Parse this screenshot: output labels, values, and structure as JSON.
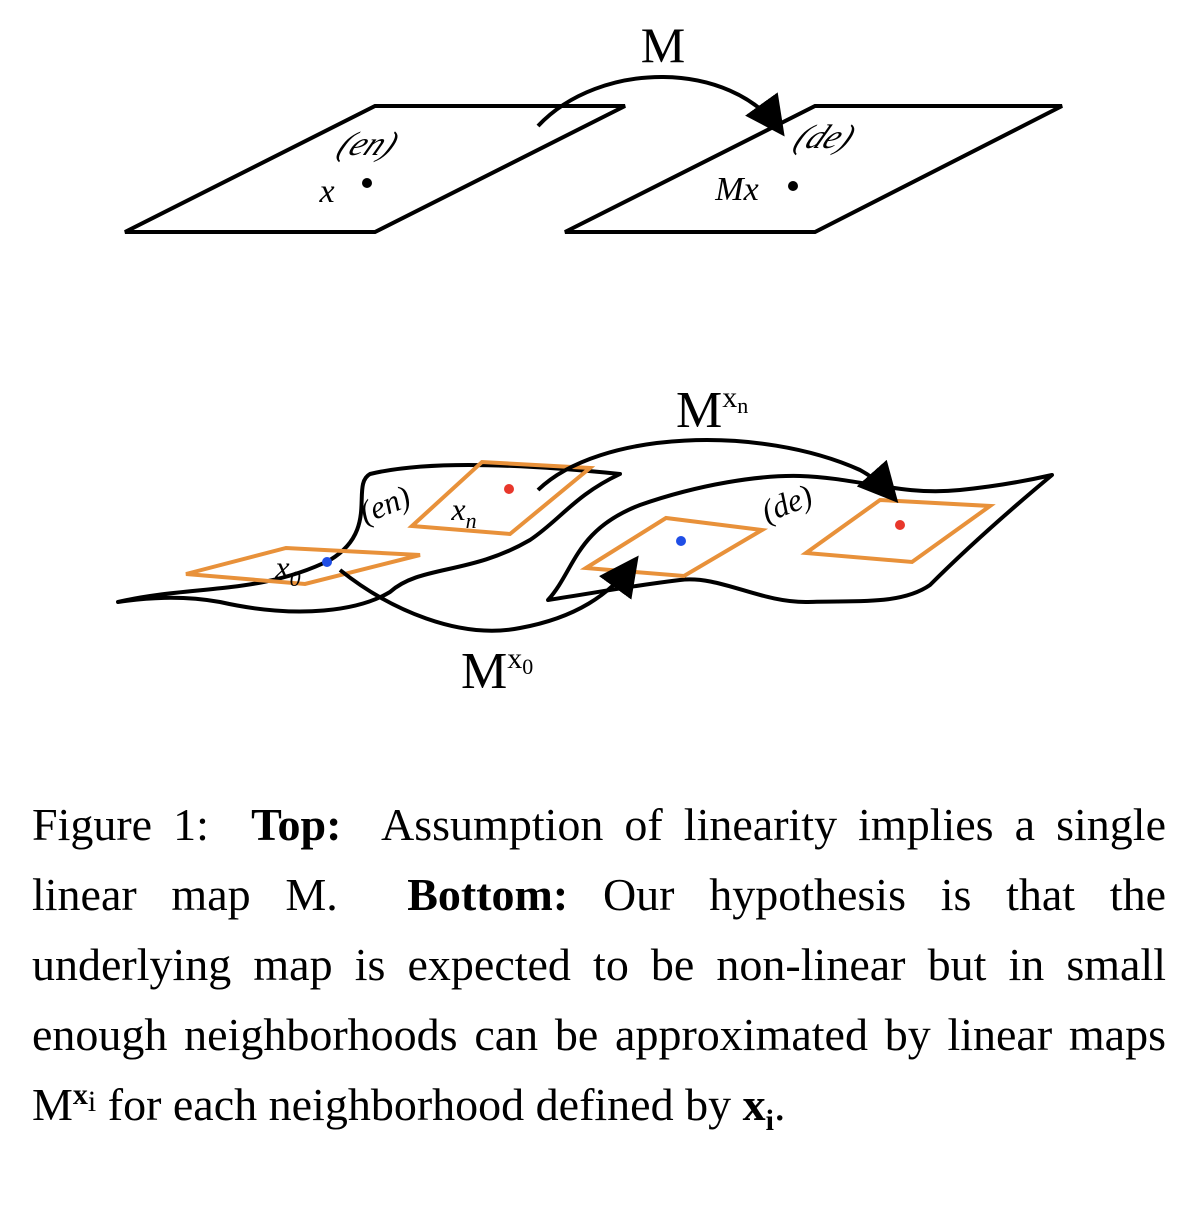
{
  "top": {
    "map_label": "M",
    "left_plane_label": "(en)",
    "left_point_label": "x",
    "right_plane_label": "(de)",
    "right_point_label": "Mx"
  },
  "bottom": {
    "upper_map_base": "M",
    "upper_map_sup_x": "x",
    "upper_map_sup_sub": "n",
    "lower_map_base": "M",
    "lower_map_sup_x": "x",
    "lower_map_sup_sub": "0",
    "left_surface_label": "(en)",
    "right_surface_label": "(de)",
    "point_x0_x": "x",
    "point_x0_sub": "0",
    "point_xn_x": "x",
    "point_xn_sub": "n"
  },
  "colors": {
    "outline": "#000000",
    "neighborhood": "#e8913a",
    "point_red": "#e8372b",
    "point_blue": "#1f4ee6"
  },
  "caption": {
    "fig_label": "Figure 1:",
    "top_label": "Top:",
    "top_text": "Assumption of linearity implies a single linear map",
    "top_map": "M",
    "top_end": ".",
    "bottom_label": "Bottom:",
    "bottom_text": "Our hypothesis is that the underlying map is expected to be non-linear but in small enough neighborhoods can be approximated by linear maps",
    "map_base": "M",
    "map_sup_x": "x",
    "map_sup_sub": "i",
    "tail_text": "for each neighborhood defined by",
    "final_x": "x",
    "final_sub": "i",
    "final_period": "."
  }
}
